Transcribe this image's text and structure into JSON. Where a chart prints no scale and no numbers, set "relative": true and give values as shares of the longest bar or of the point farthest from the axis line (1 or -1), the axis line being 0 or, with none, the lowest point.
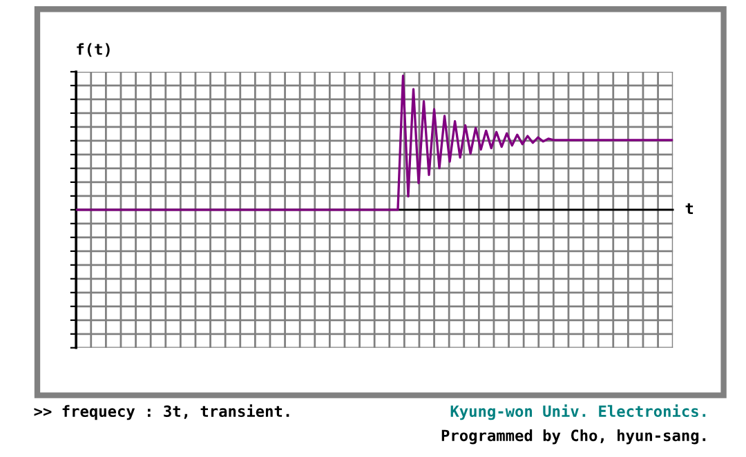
{
  "chart_data": {
    "type": "line",
    "relative": true,
    "ylabel": "f(t)",
    "xlabel": "t",
    "categories": [
      null,
      null,
      null,
      null,
      null,
      null,
      null,
      null,
      null,
      null,
      null,
      null,
      null,
      null,
      null,
      null,
      null,
      null,
      null,
      null,
      null,
      null,
      null,
      null,
      null,
      null,
      null,
      null,
      null,
      null,
      null,
      null,
      null,
      null,
      null,
      null,
      null,
      null,
      null,
      null,
      null,
      null,
      null,
      null,
      null,
      null,
      null,
      null,
      null,
      null,
      null,
      null,
      null,
      null,
      null,
      null,
      null,
      null,
      null,
      null,
      null,
      null,
      null,
      null,
      null,
      null,
      null,
      null,
      null,
      null,
      null,
      null,
      null,
      null,
      null,
      null,
      null,
      null,
      null,
      null,
      null,
      null,
      null,
      null,
      null,
      null,
      null,
      null,
      null,
      null,
      null,
      null,
      null,
      null,
      null,
      null,
      null,
      null,
      null,
      null,
      null,
      null,
      null,
      null,
      null,
      null,
      null,
      null,
      null,
      null,
      null,
      null,
      null,
      null,
      null,
      null
    ],
    "series": [
      {
        "color": "#800080",
        "values": [
          0,
          0,
          0,
          0,
          0,
          0,
          0,
          0,
          0,
          0,
          0,
          0,
          0,
          0,
          0,
          0,
          0,
          0,
          0,
          0,
          0,
          0,
          0,
          0,
          0,
          0,
          0,
          0,
          0,
          0,
          0,
          0,
          0,
          0,
          0,
          0,
          0,
          0,
          0,
          0,
          0,
          0,
          0,
          0,
          0,
          0,
          0,
          0,
          0,
          0,
          0,
          0,
          0,
          0,
          0,
          0,
          0,
          0,
          0,
          0,
          0,
          0,
          0,
          1.0,
          0.1,
          0.9,
          0.2,
          0.81,
          0.26,
          0.75,
          0.31,
          0.7,
          0.36,
          0.66,
          0.39,
          0.63,
          0.42,
          0.61,
          0.45,
          0.59,
          0.46,
          0.58,
          0.47,
          0.57,
          0.48,
          0.56,
          0.49,
          0.55,
          0.5,
          0.54,
          0.51,
          0.53,
          0.52,
          0.52,
          0.52,
          0.52,
          0.52,
          0.52,
          0.52,
          0.52,
          0.52,
          0.52,
          0.52,
          0.52,
          0.52,
          0.52,
          0.52,
          0.52,
          0.52,
          0.52,
          0.52,
          0.52,
          0.52,
          0.52,
          0.52,
          0.52
        ]
      }
    ],
    "grid": true,
    "marker": "none",
    "line_style": "solid",
    "legend": false,
    "annotations": [
      ">> frequecy : 3t, transient.",
      "Kyung-won Univ. Electronics.",
      "Programmed by Cho, hyun-sang."
    ]
  }
}
